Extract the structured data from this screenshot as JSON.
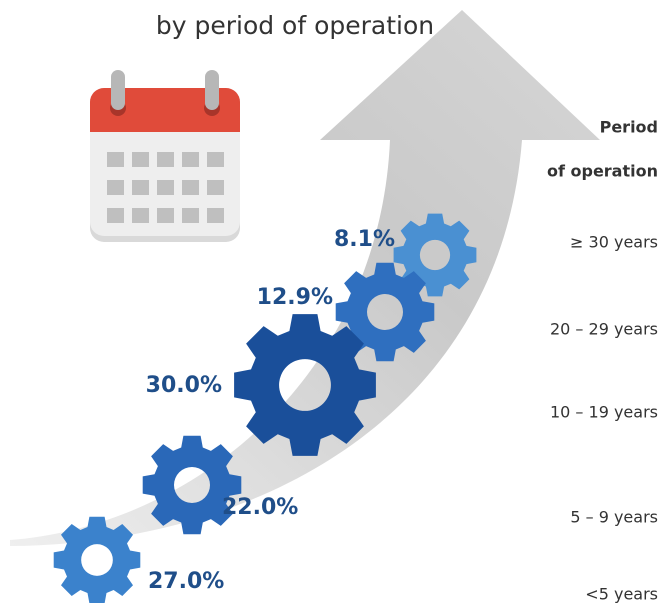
{
  "title": "by period of operation",
  "legend_title": [
    "Period",
    "of operation"
  ],
  "items": [
    {
      "period": "≥ 30 years",
      "share": "8.1%"
    },
    {
      "period": "20 – 29 years",
      "share": "12.9%"
    },
    {
      "period": "10 – 19 years",
      "share": "30.0%"
    },
    {
      "period": "5 – 9 years",
      "share": "22.0%"
    },
    {
      "period": "<5 years",
      "share": "27.0%"
    }
  ]
}
